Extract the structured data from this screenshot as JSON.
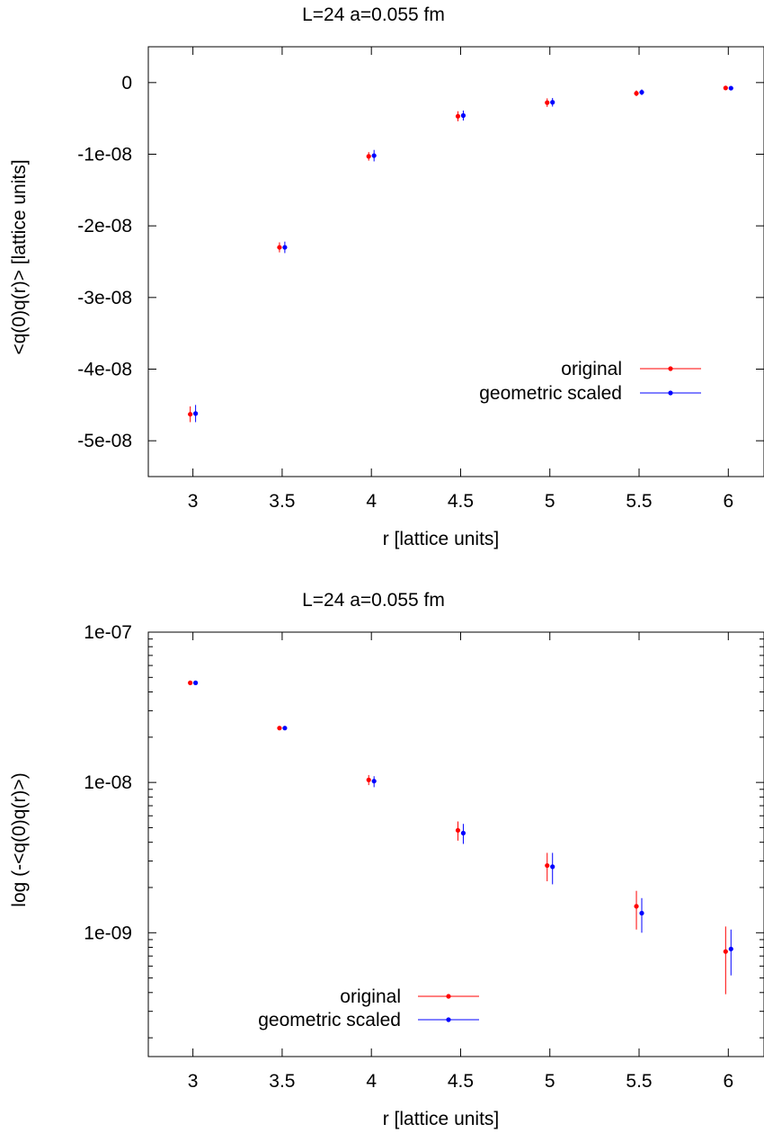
{
  "chart_data": [
    {
      "type": "scatter",
      "title": "L=24        a=0.055 fm",
      "xlabel": "r [lattice units]",
      "ylabel": "<q(0)q(r)> [lattice units]",
      "xlim": [
        2.75,
        6.2
      ],
      "ylim": [
        -5.5e-08,
        5e-09
      ],
      "y_scale": "linear",
      "xticks": [
        3,
        3.5,
        4,
        4.5,
        5,
        5.5,
        6
      ],
      "xtick_labels": [
        "3",
        "3.5",
        "4",
        "4.5",
        "5",
        "5.5",
        "6"
      ],
      "yticks": [
        0,
        -1e-08,
        -2e-08,
        -3e-08,
        -4e-08,
        -5e-08
      ],
      "ytick_labels": [
        "0",
        "-1e-08",
        "-2e-08",
        "-3e-08",
        "-4e-08",
        "-5e-08"
      ],
      "legend_position": "lower-right",
      "series": [
        {
          "name": "original",
          "color": "#ff0000",
          "x": [
            2.985,
            3.485,
            3.985,
            4.485,
            4.985,
            5.485,
            5.985
          ],
          "y": [
            -4.63e-08,
            -2.3e-08,
            -1.03e-08,
            -4.7e-09,
            -2.8e-09,
            -1.5e-09,
            -7.5e-10
          ],
          "err": [
            1.1e-09,
            7e-10,
            6e-10,
            7e-10,
            6e-10,
            4e-10,
            3e-10
          ]
        },
        {
          "name": "geometric scaled",
          "color": "#0000ff",
          "x": [
            3.015,
            3.515,
            4.015,
            4.515,
            5.015,
            5.515,
            6.015
          ],
          "y": [
            -4.62e-08,
            -2.3e-08,
            -1.02e-08,
            -4.6e-09,
            -2.75e-09,
            -1.35e-09,
            -7.8e-10
          ],
          "err": [
            1.2e-09,
            8e-10,
            8e-10,
            7e-10,
            6e-10,
            4e-10,
            3e-10
          ]
        }
      ]
    },
    {
      "type": "scatter",
      "title": "L=24        a=0.055 fm",
      "xlabel": "r [lattice units]",
      "ylabel": "log (-<q(0)q(r)>)",
      "xlim": [
        2.75,
        6.2
      ],
      "ylim": [
        1.5e-10,
        1e-07
      ],
      "y_scale": "log",
      "xticks": [
        3,
        3.5,
        4,
        4.5,
        5,
        5.5,
        6
      ],
      "xtick_labels": [
        "3",
        "3.5",
        "4",
        "4.5",
        "5",
        "5.5",
        "6"
      ],
      "yticks": [
        1e-07,
        1e-08,
        1e-09
      ],
      "ytick_labels": [
        "1e-07",
        "1e-08",
        "1e-09"
      ],
      "legend_position": "lower-left",
      "series": [
        {
          "name": "original",
          "color": "#ff0000",
          "x": [
            2.985,
            3.485,
            3.985,
            4.485,
            4.985,
            5.485,
            5.985
          ],
          "y": [
            4.6e-08,
            2.3e-08,
            1.04e-08,
            4.8e-09,
            2.8e-09,
            1.5e-09,
            7.5e-10
          ],
          "lo": [
            4.55e-08,
            2.27e-08,
            9.6e-09,
            4.1e-09,
            2.2e-09,
            1.05e-09,
            3.9e-10
          ],
          "hi": [
            4.65e-08,
            2.33e-08,
            1.12e-08,
            5.5e-09,
            3.4e-09,
            1.9e-09,
            1.1e-09
          ]
        },
        {
          "name": "geometric scaled",
          "color": "#0000ff",
          "x": [
            3.015,
            3.515,
            4.015,
            4.515,
            5.015,
            5.515,
            6.015
          ],
          "y": [
            4.6e-08,
            2.3e-08,
            1.02e-08,
            4.6e-09,
            2.75e-09,
            1.35e-09,
            7.8e-10
          ],
          "lo": [
            4.55e-08,
            2.27e-08,
            9.3e-09,
            3.9e-09,
            2.1e-09,
            1e-09,
            5.2e-10
          ],
          "hi": [
            4.65e-08,
            2.33e-08,
            1.1e-08,
            5.3e-09,
            3.4e-09,
            1.7e-09,
            1.05e-09
          ]
        }
      ]
    }
  ]
}
